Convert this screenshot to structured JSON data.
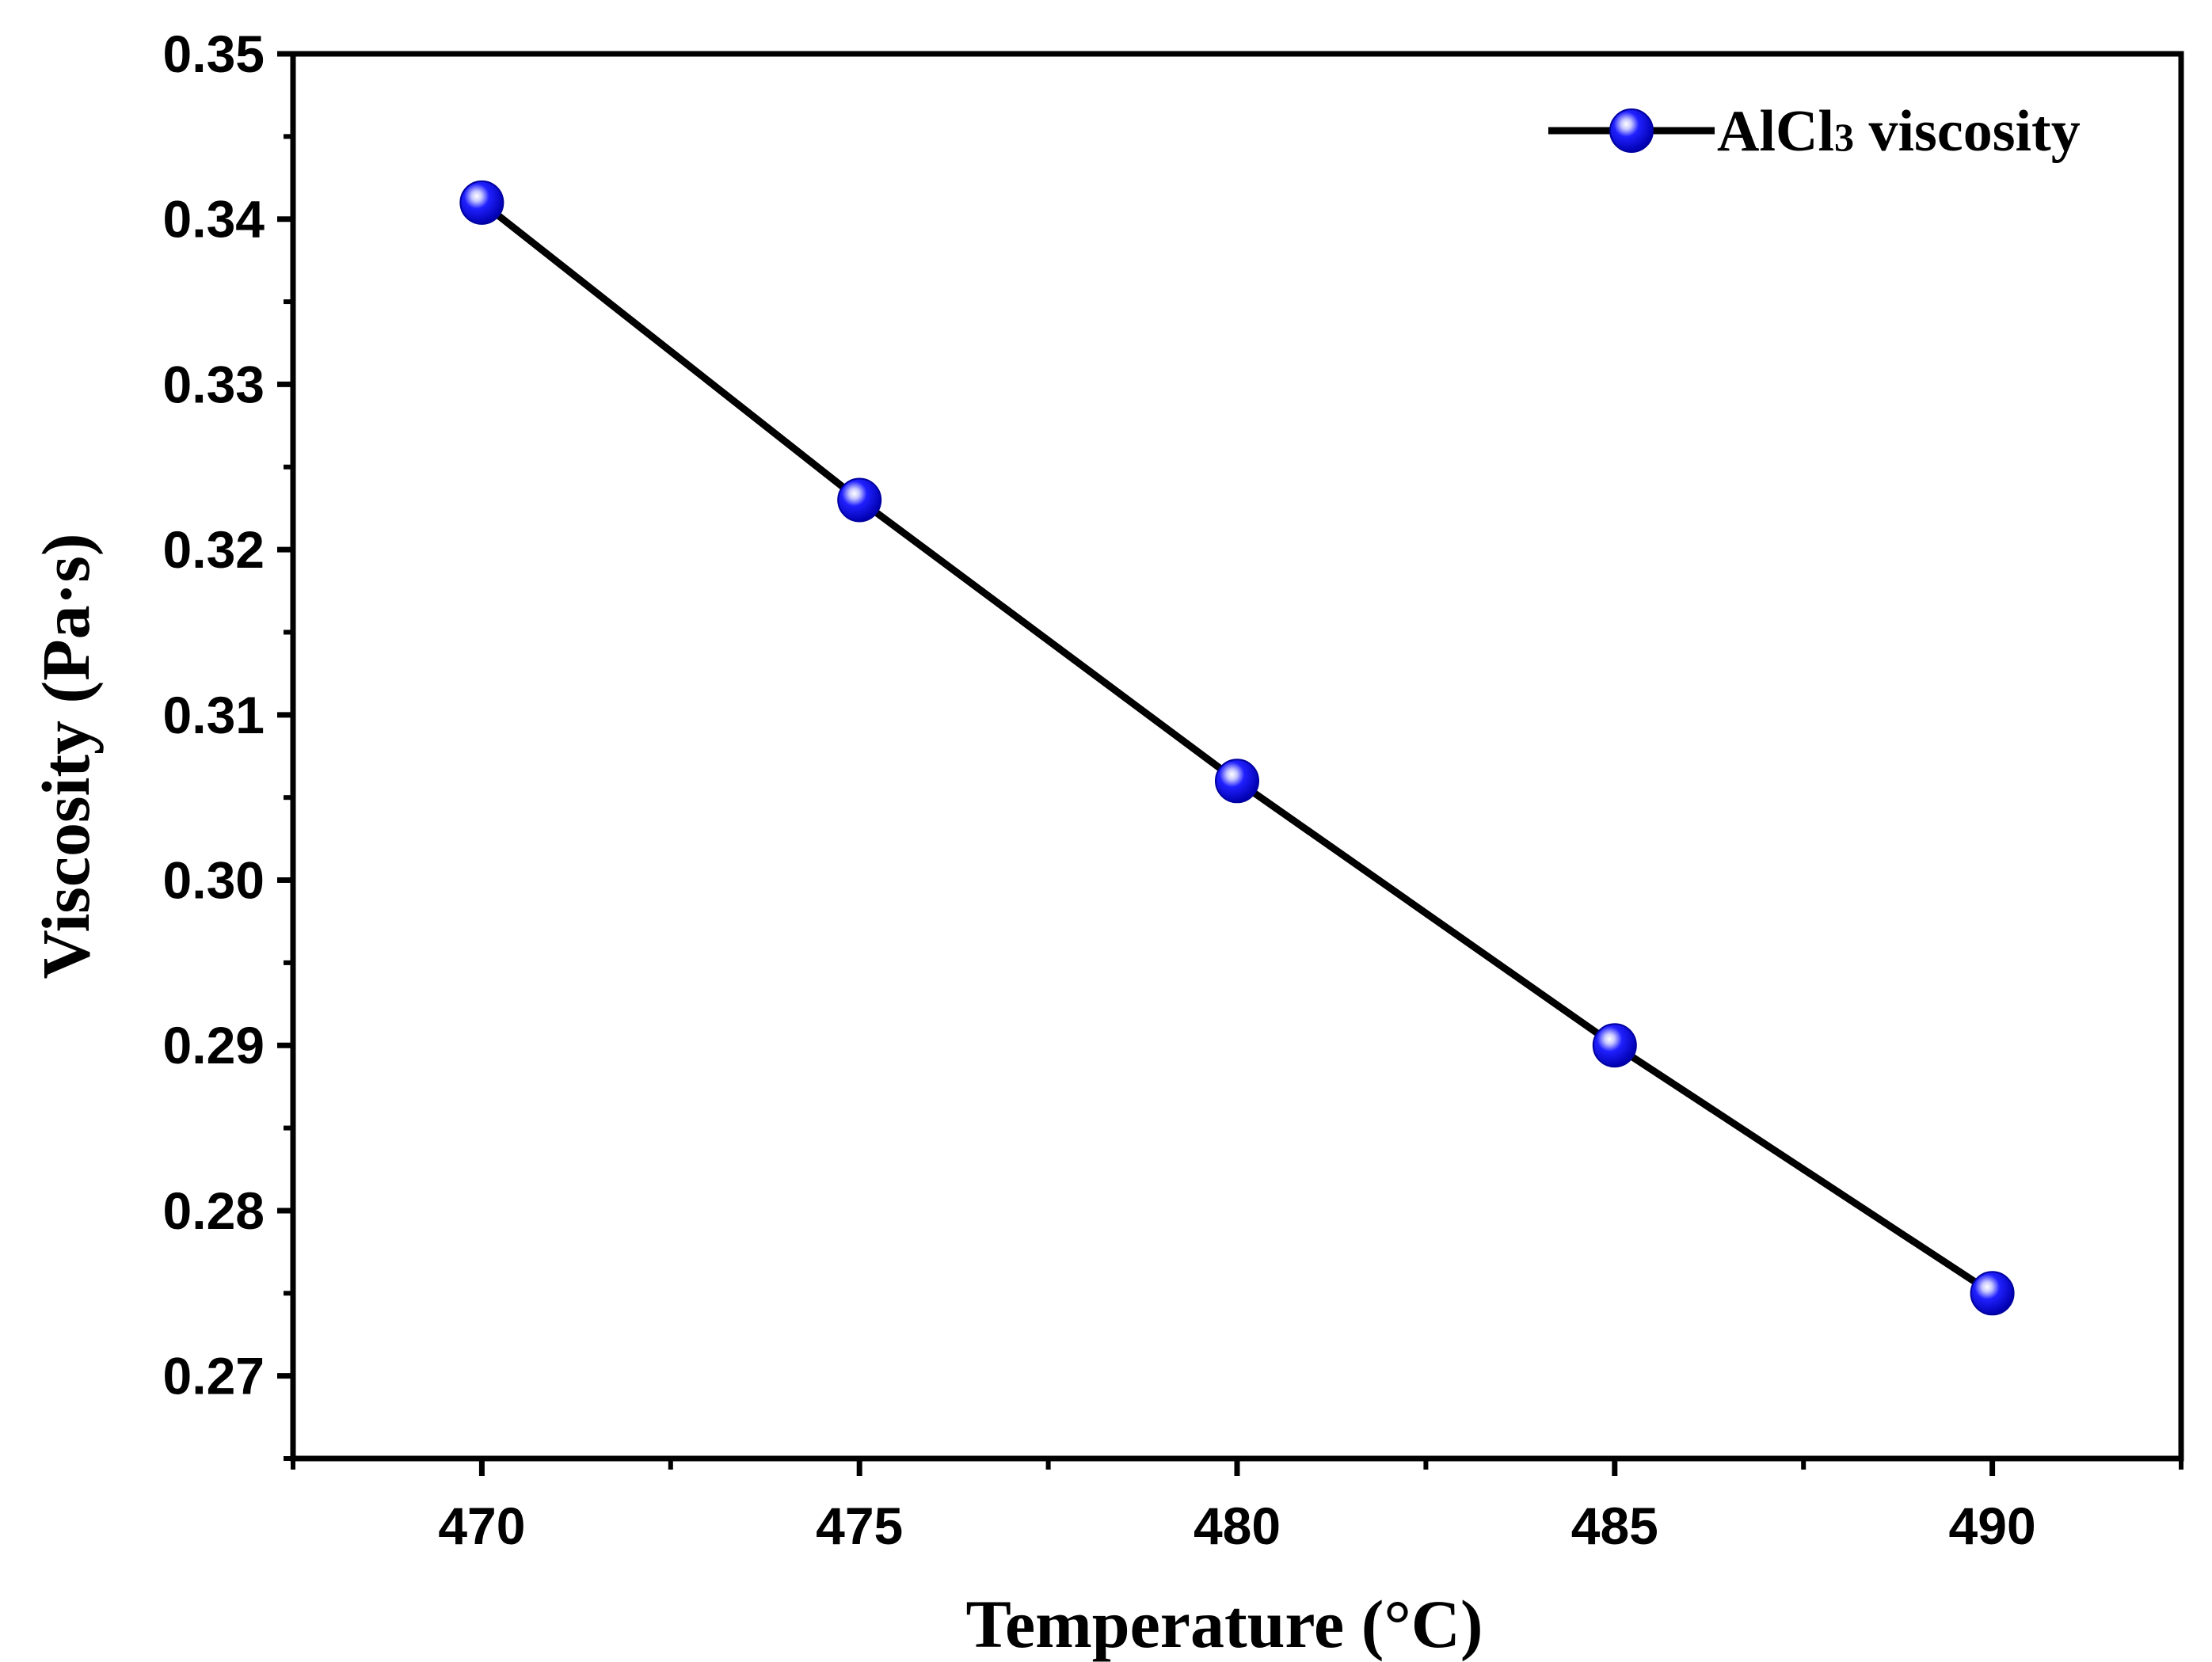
{
  "chart_data": {
    "type": "line",
    "title": "",
    "xlabel": "Temperature (°C)",
    "ylabel": "Viscosity (Pa·s)",
    "xlim": [
      467.5,
      492.5
    ],
    "ylim": [
      0.265,
      0.35
    ],
    "x_ticks": [
      470,
      475,
      480,
      485,
      490
    ],
    "x_tick_labels": [
      "470",
      "475",
      "480",
      "485",
      "490"
    ],
    "y_ticks": [
      0.27,
      0.28,
      0.29,
      0.3,
      0.31,
      0.32,
      0.33,
      0.34,
      0.35
    ],
    "y_tick_labels": [
      "0.27",
      "0.28",
      "0.29",
      "0.30",
      "0.31",
      "0.32",
      "0.33",
      "0.34",
      "0.35"
    ],
    "grid": false,
    "legend_position": "top-right",
    "series": [
      {
        "name": "AlCl3 viscosity",
        "legend_label_main": "AlCl",
        "legend_label_sub": "3",
        "legend_label_rest": " viscosity",
        "x": [
          470,
          475,
          480,
          485,
          490
        ],
        "y": [
          0.341,
          0.323,
          0.306,
          0.29,
          0.275
        ],
        "line_color": "#000000",
        "marker": "circle",
        "marker_color": "#0000ee"
      }
    ]
  }
}
